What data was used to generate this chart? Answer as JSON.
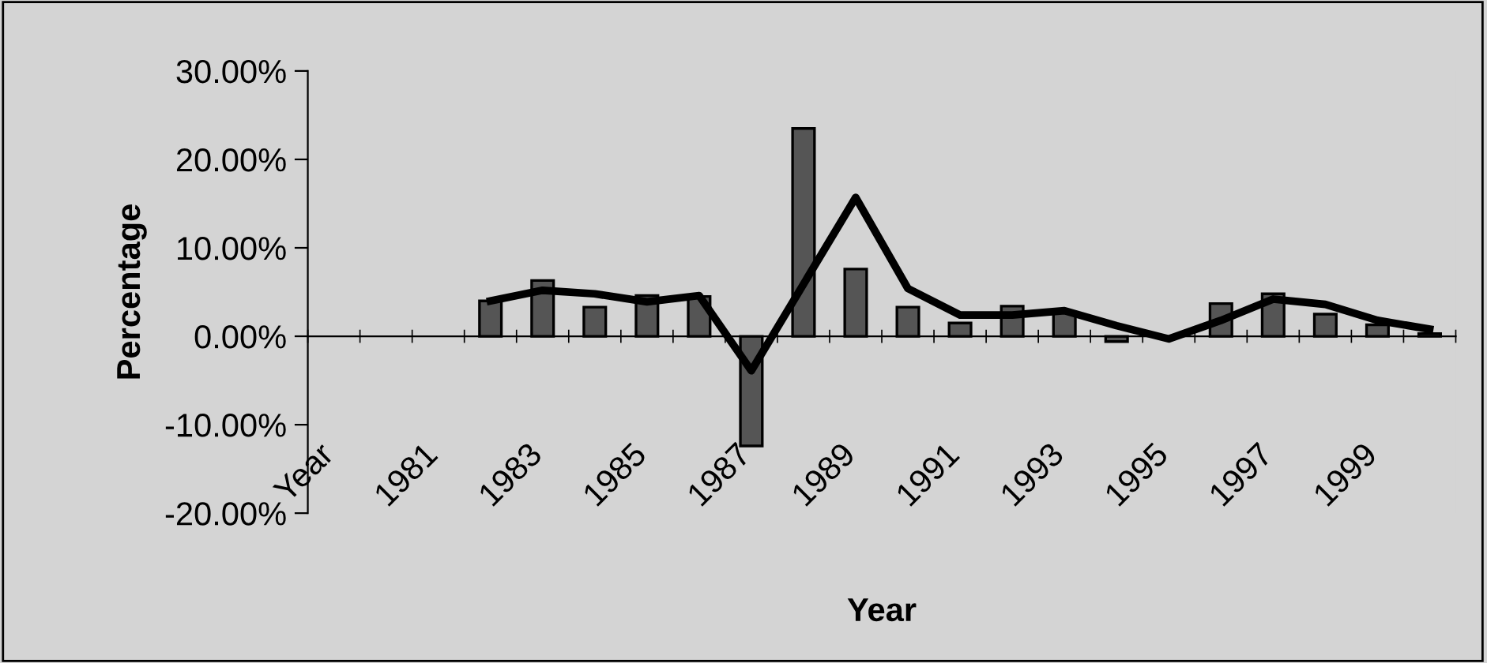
{
  "chart_data": {
    "type": "bar",
    "xlabel": "Year",
    "ylabel": "Percentage",
    "categories": [
      "Year",
      null,
      "1981",
      null,
      "1983",
      null,
      "1985",
      null,
      "1987",
      null,
      "1989",
      null,
      "1991",
      null,
      "1993",
      null,
      "1995",
      null,
      "1997",
      null,
      "1999",
      null
    ],
    "series": [
      {
        "color": "#555555",
        "values": [
          null,
          null,
          null,
          4.0,
          6.3,
          3.3,
          4.6,
          4.5,
          -12.4,
          23.5,
          7.6,
          3.3,
          1.5,
          3.4,
          2.7,
          -0.6,
          null,
          3.7,
          4.8,
          2.5,
          1.3,
          0.3
        ]
      },
      {
        "type": "line",
        "color": "#000000",
        "values": [
          null,
          null,
          null,
          4.0,
          5.2,
          4.8,
          3.9,
          4.6,
          -3.9,
          5.9,
          15.7,
          5.4,
          2.4,
          2.4,
          2.9,
          1.2,
          -0.3,
          1.8,
          4.2,
          3.6,
          1.8,
          0.8
        ]
      }
    ],
    "ylim": [
      -20,
      30
    ],
    "yticks": [
      {
        "value": -20,
        "label": "-20.00%"
      },
      {
        "value": -10,
        "label": "-10.00%"
      },
      {
        "value": 0,
        "label": "0.00%"
      },
      {
        "value": 10,
        "label": "10.00%"
      },
      {
        "value": 20,
        "label": "20.00%"
      },
      {
        "value": 30,
        "label": "30.00%"
      }
    ],
    "legend": false,
    "marker": "none",
    "line_style": "solid"
  }
}
